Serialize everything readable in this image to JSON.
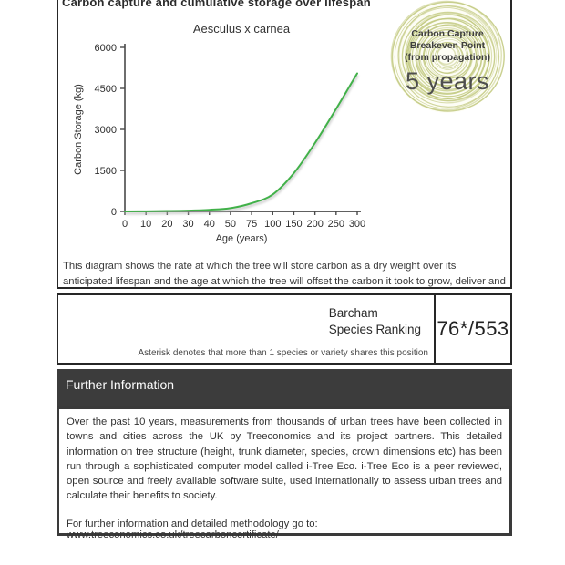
{
  "page": {
    "title": "Carbon capture and cumulative storage over lifespan"
  },
  "chart_data": {
    "type": "line",
    "title": "Aesculus x carnea",
    "xlabel": "Age (years)",
    "ylabel": "Carbon Storage (kg)",
    "categories": [
      0,
      10,
      20,
      30,
      40,
      50,
      75,
      100,
      150,
      200,
      250,
      300
    ],
    "values": [
      0,
      5,
      15,
      30,
      60,
      120,
      300,
      620,
      1400,
      2500,
      3750,
      5050
    ],
    "ylim": [
      0,
      6000
    ],
    "yticks": [
      0,
      1500,
      3000,
      4500,
      6000
    ],
    "line_color": "#41b149",
    "axis_color": "#4a4a4a",
    "grid": false,
    "legend": "none"
  },
  "badge": {
    "line1": "Carbon Capture",
    "line2": "Breakeven Point",
    "line3": "(from propagation)",
    "value": "5 years",
    "ring_color": "#c3ca83"
  },
  "description": "This diagram shows the rate at which the tree will store carbon as a dry weight over its anticipated lifespan and the age at which the tree will offset the carbon it took to grow, deliver and plant it.",
  "ranking": {
    "label_line1": "Barcham",
    "label_line2": "Species Ranking",
    "value": "76*/553",
    "footnote": "Asterisk denotes that more than 1 species or variety shares this position"
  },
  "further_info": {
    "heading": "Further Information",
    "body": "Over the past 10 years, measurements from thousands of urban trees have been collected in towns and cities across the UK by Treeconomics and its project partners. This detailed information on tree structure (height, trunk diameter, species, crown dimensions etc) has been run through a sophisticated computer model called i-Tree Eco. i-Tree Eco is a peer reviewed, open source and freely available software suite, used internationally to assess urban trees and calculate their benefits to society.",
    "link_text": "For further information and detailed methodology go to: www.treeconomics.co.uk/treecarboncertificate/"
  }
}
